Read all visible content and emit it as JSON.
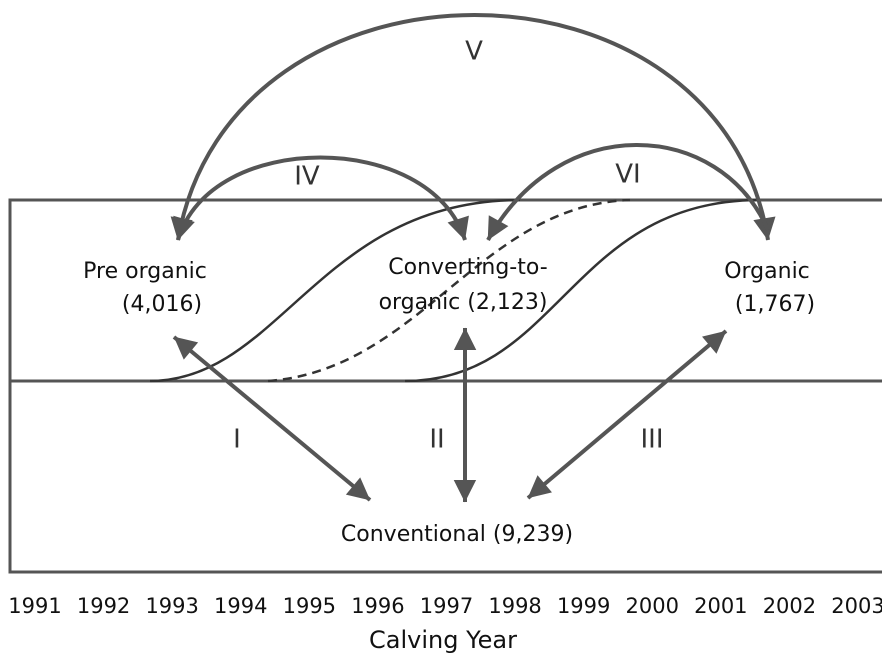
{
  "nodes": [
    {
      "lines": [
        "Pre organic",
        "(4,016)"
      ]
    },
    {
      "lines": [
        "Converting-to-",
        "organic (2,123)"
      ]
    },
    {
      "lines": [
        "Organic",
        "(1,767)"
      ]
    },
    {
      "lines": [
        "Conventional (9,239)"
      ]
    }
  ],
  "transitions": [
    "I",
    "II",
    "III",
    "IV",
    "V",
    "VI"
  ],
  "years": [
    "1991",
    "1992",
    "1993",
    "1994",
    "1995",
    "1996",
    "1997",
    "1998",
    "1999",
    "2000",
    "2001",
    "2002",
    "2003"
  ],
  "axis_label": "Calving Year"
}
